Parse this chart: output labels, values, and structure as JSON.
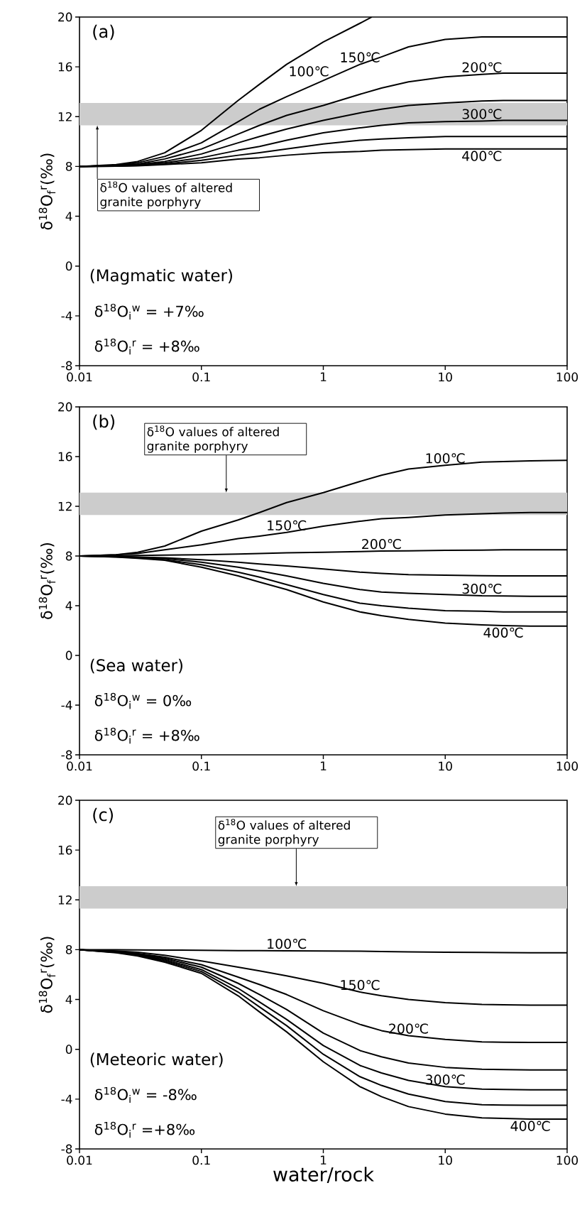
{
  "chart_data": [
    {
      "type": "line",
      "title": "(a)",
      "ylabel": "δ$^{18}$O$_{f}$$^{r}$(‰)",
      "log": "x",
      "x": [
        0.01,
        0.02,
        0.03,
        0.05,
        0.1,
        0.2,
        0.3,
        0.5,
        1,
        2,
        3,
        5,
        10,
        20,
        30,
        50,
        100
      ],
      "xlim": [
        0.01,
        100
      ],
      "xticks": [
        0.01,
        0.1,
        1,
        10,
        100
      ],
      "ylim": [
        -8,
        20
      ],
      "yticks": [
        -8,
        -4,
        0,
        4,
        8,
        12,
        16,
        20
      ],
      "series": [
        {
          "name": "100℃",
          "color": "#000000",
          "x": [
            0.01,
            0.02,
            0.03,
            0.05,
            0.1,
            0.2,
            0.3,
            0.5,
            1,
            2,
            2.5
          ],
          "values": [
            8,
            8.15,
            8.4,
            9.1,
            10.9,
            13.3,
            14.6,
            16.2,
            18.0,
            19.5,
            20
          ]
        },
        {
          "name": "150℃",
          "color": "#000000",
          "values": [
            8,
            8.1,
            8.3,
            8.8,
            9.9,
            11.6,
            12.6,
            13.6,
            14.9,
            16.2,
            16.8,
            17.6,
            18.2,
            18.4,
            18.4,
            18.4,
            18.4
          ]
        },
        {
          "name": "200℃",
          "color": "#000000",
          "values": [
            8,
            8.1,
            8.2,
            8.6,
            9.4,
            10.6,
            11.3,
            12.1,
            12.9,
            13.8,
            14.3,
            14.8,
            15.2,
            15.4,
            15.5,
            15.5,
            15.5
          ]
        },
        {
          "color": "#000000",
          "values": [
            8,
            8.05,
            8.15,
            8.4,
            9.0,
            9.9,
            10.4,
            11.0,
            11.7,
            12.3,
            12.6,
            12.9,
            13.1,
            13.25,
            13.3,
            13.3,
            13.3
          ]
        },
        {
          "name": "300℃",
          "color": "#000000",
          "values": [
            8,
            8.05,
            8.1,
            8.3,
            8.7,
            9.3,
            9.6,
            10.1,
            10.7,
            11.1,
            11.3,
            11.5,
            11.6,
            11.65,
            11.7,
            11.7,
            11.7
          ]
        },
        {
          "color": "#000000",
          "values": [
            8,
            8.02,
            8.08,
            8.2,
            8.5,
            8.9,
            9.1,
            9.4,
            9.8,
            10.1,
            10.2,
            10.3,
            10.4,
            10.4,
            10.4,
            10.4,
            10.4
          ]
        },
        {
          "name": "400℃",
          "color": "#000000",
          "values": [
            8,
            8.02,
            8.05,
            8.15,
            8.3,
            8.6,
            8.7,
            8.9,
            9.1,
            9.2,
            9.3,
            9.35,
            9.4,
            9.4,
            9.4,
            9.4,
            9.4
          ]
        }
      ],
      "bands": [
        {
          "axis": "y",
          "from": 11.3,
          "to": 13.1,
          "color": "#cccccc",
          "label": "δ$^{18}$O values of altered granite porphyry"
        }
      ],
      "annotations": [
        "(Magmatic water)",
        "δ$^{18}$O$_{i}$$^{w}$ = +7‰",
        "δ$^{18}$O$_{i}$$^{r}$ = +8‰"
      ]
    },
    {
      "type": "line",
      "title": "(b)",
      "ylabel": "δ$^{18}$O$_{f}$$^{r}$(‰)",
      "log": "x",
      "x": [
        0.01,
        0.02,
        0.03,
        0.05,
        0.1,
        0.2,
        0.3,
        0.5,
        1,
        2,
        3,
        5,
        10,
        20,
        30,
        50,
        100
      ],
      "xlim": [
        0.01,
        100
      ],
      "xticks": [
        0.01,
        0.1,
        1,
        10,
        100
      ],
      "ylim": [
        -8,
        20
      ],
      "yticks": [
        -8,
        -4,
        0,
        4,
        8,
        12,
        16,
        20
      ],
      "series": [
        {
          "name": "100℃",
          "color": "#000000",
          "values": [
            8,
            8.1,
            8.3,
            8.8,
            10.0,
            10.9,
            11.5,
            12.3,
            13.1,
            14.0,
            14.5,
            15.0,
            15.3,
            15.55,
            15.6,
            15.65,
            15.7
          ]
        },
        {
          "name": "150℃",
          "color": "#000000",
          "values": [
            8,
            8.1,
            8.2,
            8.5,
            8.9,
            9.4,
            9.6,
            9.9,
            10.4,
            10.8,
            11.0,
            11.1,
            11.3,
            11.4,
            11.45,
            11.5,
            11.5
          ]
        },
        {
          "name": "200℃",
          "color": "#000000",
          "values": [
            8,
            8.02,
            8.04,
            8.07,
            8.1,
            8.15,
            8.2,
            8.25,
            8.3,
            8.35,
            8.4,
            8.42,
            8.45,
            8.47,
            8.5,
            8.5,
            8.5
          ]
        },
        {
          "color": "#000000",
          "values": [
            8,
            7.97,
            7.92,
            7.85,
            7.7,
            7.5,
            7.35,
            7.2,
            6.95,
            6.7,
            6.6,
            6.5,
            6.45,
            6.42,
            6.4,
            6.4,
            6.4
          ]
        },
        {
          "name": "300℃",
          "color": "#000000",
          "values": [
            8,
            7.95,
            7.9,
            7.8,
            7.5,
            7.1,
            6.8,
            6.4,
            5.8,
            5.3,
            5.1,
            5.0,
            4.9,
            4.8,
            4.78,
            4.75,
            4.75
          ]
        },
        {
          "color": "#000000",
          "values": [
            8,
            7.93,
            7.85,
            7.7,
            7.3,
            6.7,
            6.3,
            5.7,
            4.9,
            4.2,
            4.0,
            3.8,
            3.6,
            3.55,
            3.5,
            3.5,
            3.5
          ]
        },
        {
          "name": "400℃",
          "color": "#000000",
          "values": [
            8,
            7.92,
            7.82,
            7.65,
            7.1,
            6.4,
            5.9,
            5.3,
            4.3,
            3.5,
            3.2,
            2.9,
            2.6,
            2.45,
            2.4,
            2.35,
            2.35
          ]
        }
      ],
      "bands": [
        {
          "axis": "y",
          "from": 11.3,
          "to": 13.1,
          "color": "#cccccc",
          "label": "δ$^{18}$O values of altered granite porphyry"
        }
      ],
      "annotations": [
        "(Sea water)",
        "δ$^{18}$O$_{i}$$^{w}$ = 0‰",
        "δ$^{18}$O$_{i}$$^{r}$ = +8‰"
      ]
    },
    {
      "type": "line",
      "title": "(c)",
      "xlabel": "water/rock",
      "ylabel": "δ$^{18}$O$_{f}$$^{r}$(‰)",
      "log": "x",
      "x": [
        0.01,
        0.02,
        0.03,
        0.05,
        0.1,
        0.2,
        0.3,
        0.5,
        1,
        2,
        3,
        5,
        10,
        20,
        30,
        50,
        100
      ],
      "xlim": [
        0.01,
        100
      ],
      "xticks": [
        0.01,
        0.1,
        1,
        10,
        100
      ],
      "ylim": [
        -8,
        20
      ],
      "yticks": [
        -8,
        -4,
        0,
        4,
        8,
        12,
        16,
        20
      ],
      "series": [
        {
          "name": "100℃",
          "color": "#000000",
          "values": [
            8,
            8,
            7.98,
            7.97,
            7.95,
            7.93,
            7.92,
            7.91,
            7.9,
            7.88,
            7.85,
            7.83,
            7.8,
            7.78,
            7.76,
            7.75,
            7.75
          ]
        },
        {
          "name": "150℃",
          "color": "#000000",
          "values": [
            8,
            7.9,
            7.8,
            7.55,
            7.1,
            6.6,
            6.3,
            5.9,
            5.3,
            4.6,
            4.3,
            4.0,
            3.75,
            3.6,
            3.57,
            3.55,
            3.55
          ]
        },
        {
          "name": "200℃",
          "color": "#000000",
          "values": [
            8,
            7.85,
            7.7,
            7.4,
            6.8,
            5.8,
            5.2,
            4.4,
            3.1,
            2.0,
            1.5,
            1.1,
            0.8,
            0.6,
            0.57,
            0.55,
            0.55
          ]
        },
        {
          "color": "#000000",
          "values": [
            8,
            7.83,
            7.65,
            7.3,
            6.6,
            5.3,
            4.4,
            3.2,
            1.3,
            -0.1,
            -0.6,
            -1.1,
            -1.45,
            -1.6,
            -1.63,
            -1.65,
            -1.65
          ]
        },
        {
          "name": "300℃",
          "color": "#000000",
          "values": [
            8,
            7.8,
            7.6,
            7.2,
            6.4,
            4.9,
            3.8,
            2.4,
            0.3,
            -1.3,
            -1.9,
            -2.5,
            -3.0,
            -3.2,
            -3.23,
            -3.25,
            -3.25
          ]
        },
        {
          "color": "#000000",
          "values": [
            8,
            7.78,
            7.55,
            7.1,
            6.25,
            4.6,
            3.4,
            1.9,
            -0.4,
            -2.2,
            -2.9,
            -3.6,
            -4.2,
            -4.45,
            -4.48,
            -4.5,
            -4.5
          ]
        },
        {
          "name": "400℃",
          "color": "#000000",
          "values": [
            8,
            7.75,
            7.5,
            7.0,
            6.1,
            4.3,
            3.0,
            1.4,
            -1.0,
            -3.0,
            -3.8,
            -4.6,
            -5.2,
            -5.5,
            -5.55,
            -5.6,
            -5.6
          ]
        }
      ],
      "bands": [
        {
          "axis": "y",
          "from": 11.3,
          "to": 13.1,
          "color": "#cccccc",
          "label": "δ$^{18}$O values of altered granite porphyry"
        }
      ],
      "annotations": [
        "(Meteoric water)",
        "δ$^{18}$O$_{i}$$^{w}$ = -8‰",
        "δ$^{18}$O$_{i}$$^{r}$ =+8‰"
      ]
    }
  ]
}
